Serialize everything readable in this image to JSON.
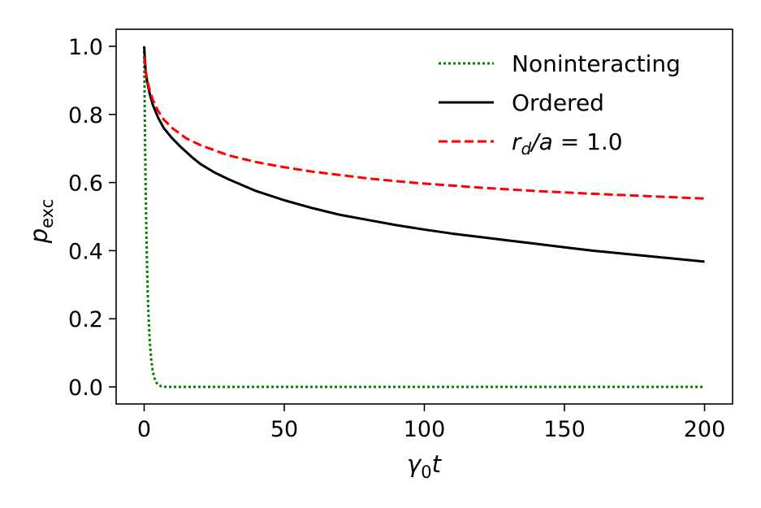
{
  "chart_data": {
    "type": "line",
    "xlabel": "γ0t",
    "ylabel": "pexc",
    "xlim": [
      -10,
      210
    ],
    "ylim": [
      -0.05,
      1.05
    ],
    "x_ticks": [
      0,
      50,
      100,
      150,
      200
    ],
    "y_ticks": [
      0.0,
      0.2,
      0.4,
      0.6,
      0.8,
      1.0
    ],
    "grid": false,
    "legend_position": "top-right",
    "series": [
      {
        "name": "Noninteracting",
        "color": "#008000",
        "style": "dotted",
        "x": [
          0,
          0.25,
          0.5,
          0.75,
          1,
          1.25,
          1.5,
          2,
          2.5,
          3,
          3.5,
          4,
          4.5,
          5,
          6,
          7,
          8,
          10,
          15,
          20,
          50,
          100,
          150,
          200
        ],
        "y": [
          1.0,
          0.779,
          0.607,
          0.472,
          0.368,
          0.287,
          0.223,
          0.135,
          0.082,
          0.05,
          0.03,
          0.018,
          0.011,
          0.007,
          0.002,
          0.001,
          0.0,
          0.0,
          0.0,
          0.0,
          0.0,
          0.0,
          0.0,
          0.0
        ]
      },
      {
        "name": "Ordered",
        "color": "#000000",
        "style": "solid",
        "x": [
          0,
          0.5,
          1,
          2,
          3,
          5,
          7,
          10,
          13,
          17,
          20,
          25,
          30,
          40,
          50,
          60,
          70,
          80,
          90,
          100,
          110,
          120,
          130,
          140,
          150,
          160,
          170,
          180,
          190,
          200
        ],
        "y": [
          1.0,
          0.93,
          0.9,
          0.86,
          0.83,
          0.79,
          0.76,
          0.73,
          0.705,
          0.675,
          0.655,
          0.63,
          0.61,
          0.575,
          0.548,
          0.525,
          0.505,
          0.49,
          0.475,
          0.462,
          0.45,
          0.44,
          0.43,
          0.42,
          0.41,
          0.4,
          0.392,
          0.384,
          0.376,
          0.368
        ]
      },
      {
        "name": "r_d/a = 1.0",
        "color": "#ff0000",
        "style": "dashed",
        "x": [
          0,
          0.5,
          1,
          2,
          3,
          5,
          7,
          10,
          15,
          20,
          25,
          30,
          40,
          50,
          60,
          70,
          80,
          90,
          100,
          120,
          140,
          160,
          180,
          200
        ],
        "y": [
          0.97,
          0.93,
          0.905,
          0.87,
          0.845,
          0.81,
          0.785,
          0.76,
          0.73,
          0.71,
          0.695,
          0.68,
          0.66,
          0.645,
          0.632,
          0.622,
          0.612,
          0.604,
          0.597,
          0.585,
          0.575,
          0.567,
          0.56,
          0.553
        ]
      }
    ]
  },
  "labels": {
    "ylabel_main": "p",
    "ylabel_sub": "exc",
    "xlabel_main": "γ",
    "xlabel_sub": "0",
    "xlabel_tail": "t",
    "legend_1": "Noninteracting",
    "legend_2": "Ordered",
    "legend_3_r": "r",
    "legend_3_d": "d",
    "legend_3_slash_a": "/a",
    "legend_3_eq": " = 1.0"
  }
}
